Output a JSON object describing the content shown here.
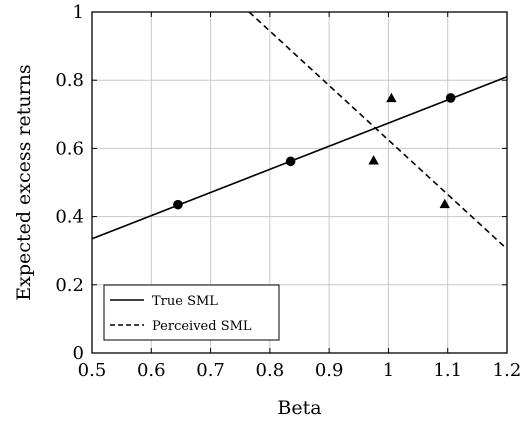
{
  "chart_data": {
    "type": "line",
    "xlabel": "Beta",
    "ylabel": "Expected excess returns",
    "xlim": [
      0.5,
      1.2
    ],
    "ylim": [
      0,
      1
    ],
    "x_ticks": [
      0.5,
      0.6,
      0.7,
      0.8,
      0.9,
      1,
      1.1,
      1.2
    ],
    "y_ticks": [
      0,
      0.2,
      0.4,
      0.6,
      0.8,
      1
    ],
    "x_tick_labels": [
      "0.5",
      "0.6",
      "0.7",
      "0.8",
      "0.9",
      "1",
      "1.1",
      "1.2"
    ],
    "y_tick_labels": [
      "0",
      "0.2",
      "0.4",
      "0.6",
      "0.8",
      "1"
    ],
    "grid": true,
    "legend_position": "bottom-left",
    "series": [
      {
        "name": "True SML",
        "style": "solid",
        "color": "#000000",
        "x": [
          0.5,
          1.2
        ],
        "y": [
          0.335,
          0.81
        ]
      },
      {
        "name": "Perceived SML",
        "style": "dashed",
        "color": "#000000",
        "x": [
          0.765,
          1.2
        ],
        "y": [
          1.0,
          0.305
        ]
      }
    ],
    "points": [
      {
        "marker": "circle",
        "x": [
          0.645,
          0.835,
          1.105
        ],
        "y": [
          0.435,
          0.562,
          0.748
        ]
      },
      {
        "marker": "triangle",
        "x": [
          0.975,
          1.005,
          1.095
        ],
        "y": [
          0.565,
          0.748,
          0.437
        ]
      }
    ]
  }
}
